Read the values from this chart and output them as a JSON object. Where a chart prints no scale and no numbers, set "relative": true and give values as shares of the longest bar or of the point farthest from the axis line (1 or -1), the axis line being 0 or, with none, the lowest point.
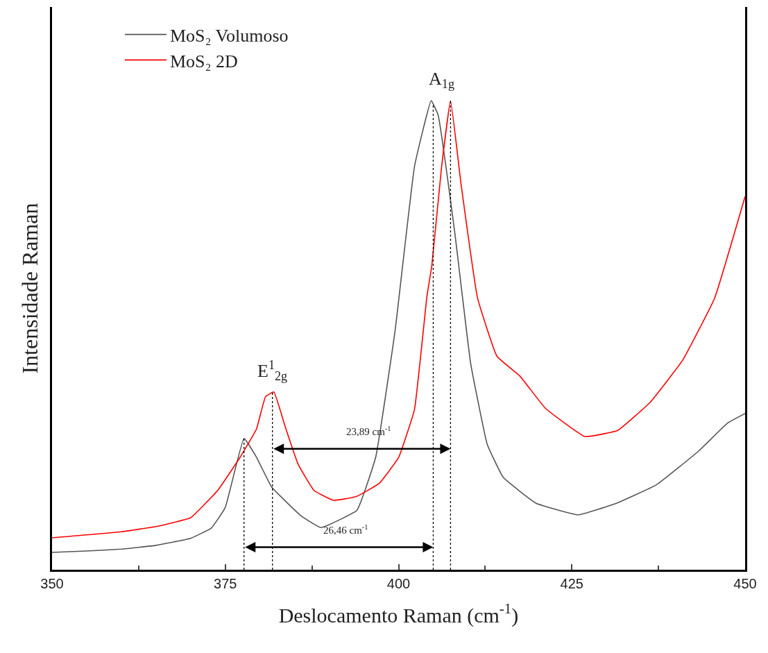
{
  "chart_data": {
    "type": "line",
    "relative": true,
    "xlabel": "Deslocamento Raman (cm$^{-1}$)",
    "ylabel": "Intensidade Raman",
    "xlim": [
      350,
      450
    ],
    "xticks": [
      350,
      375,
      400,
      425,
      450
    ],
    "legend": "top left",
    "marker": "none",
    "line_style": "solid",
    "tick_labels": "x",
    "series": [
      {
        "name": "MoS₂ Volumoso",
        "color": "#555555",
        "x": [
          350,
          355,
          360,
          365,
          370,
          373,
          375,
          377.7,
          379.5,
          381.7,
          386,
          388.8,
          394,
          396.7,
          399.5,
          402.3,
          404.7,
          405.7,
          408.1,
          410.4,
          412.8,
          415.1,
          419.8,
          425.9,
          431.5,
          437.2,
          443.3,
          447.5,
          450
        ],
        "values": [
          0.037,
          0.04,
          0.044,
          0.052,
          0.067,
          0.089,
          0.133,
          0.28,
          0.24,
          0.176,
          0.114,
          0.09,
          0.127,
          0.24,
          0.51,
          0.86,
          1.0,
          0.97,
          0.72,
          0.44,
          0.267,
          0.197,
          0.142,
          0.117,
          0.142,
          0.181,
          0.253,
          0.313,
          0.333
        ]
      },
      {
        "name": "MoS₂ 2D",
        "color": "#ff0000",
        "x": [
          350,
          360,
          365,
          370,
          373.9,
          377.1,
          379.5,
          380.8,
          382,
          383.6,
          385.5,
          387.8,
          390.6,
          393.9,
          397.2,
          400,
          402.3,
          404.1,
          404.8,
          406.2,
          407.5,
          409,
          411.4,
          414.2,
          417.5,
          421.2,
          426.9,
          431.6,
          436.3,
          441,
          445.6,
          450
        ],
        "values": [
          0.068,
          0.081,
          0.092,
          0.111,
          0.169,
          0.239,
          0.3,
          0.369,
          0.379,
          0.307,
          0.225,
          0.169,
          0.148,
          0.156,
          0.184,
          0.239,
          0.342,
          0.584,
          0.649,
          0.858,
          1.0,
          0.824,
          0.579,
          0.455,
          0.413,
          0.344,
          0.284,
          0.297,
          0.357,
          0.447,
          0.579,
          0.796
        ]
      }
    ],
    "ref_lines": [
      {
        "axis": "x",
        "value": 377.7,
        "label": null,
        "color": "#000000",
        "line_style": "dotted"
      },
      {
        "axis": "x",
        "value": 381.8,
        "label": null,
        "color": "#000000",
        "line_style": "dotted"
      },
      {
        "axis": "x",
        "value": 405.0,
        "label": null,
        "color": "#000000",
        "line_style": "dotted"
      },
      {
        "axis": "x",
        "value": 407.5,
        "label": null,
        "color": "#000000",
        "line_style": "dotted"
      }
    ],
    "annotations": [
      "23,89 cm$^{-1}$",
      "26,46 cm$^{-1}$",
      "E$^{1}$$_{2g}$",
      "A$_{1g}$"
    ]
  }
}
